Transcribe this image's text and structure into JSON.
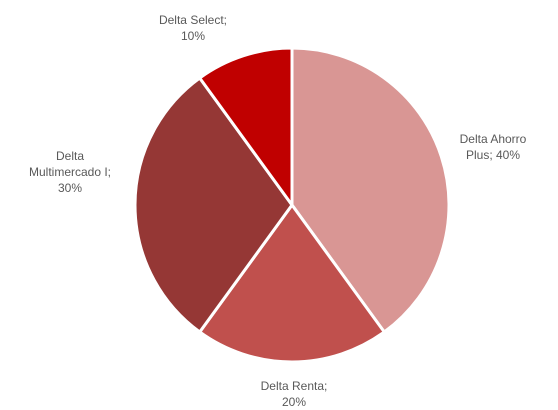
{
  "chart_data": {
    "type": "pie",
    "title": "",
    "slices": [
      {
        "label": "Delta Ahorro Plus",
        "value": 40,
        "display": [
          "Delta Ahorro",
          "Plus; 40%"
        ],
        "color": "#d99694"
      },
      {
        "label": "Delta Renta",
        "value": 20,
        "display": [
          "Delta Renta;",
          "20%"
        ],
        "color": "#c0504d"
      },
      {
        "label": "Delta Multimercado I",
        "value": 30,
        "display": [
          "Delta",
          "Multimercado I;",
          "30%"
        ],
        "color": "#953735"
      },
      {
        "label": "Delta Select",
        "value": 10,
        "display": [
          "Delta Select;",
          "10%"
        ],
        "color": "#c00000"
      }
    ],
    "value_unit": "%",
    "start": "12 o'clock",
    "direction": "clockwise",
    "legend": "none"
  }
}
